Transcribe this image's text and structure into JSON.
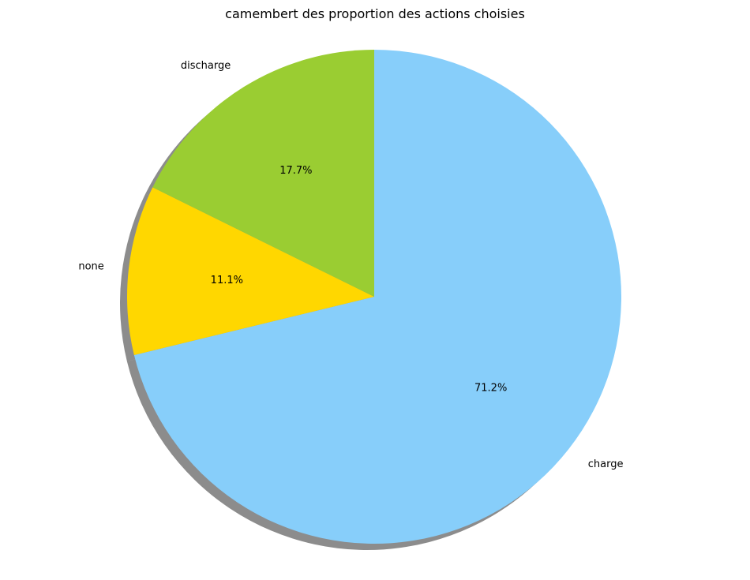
{
  "chart_data": {
    "type": "pie",
    "title": "camembert des proportion des actions choisies",
    "shadow": true,
    "start_angle_deg": 90,
    "direction": "clockwise",
    "slices": [
      {
        "label": "charge",
        "value": 71.2,
        "pct_label": "71.2%",
        "color": "#87CEFA"
      },
      {
        "label": "none",
        "value": 11.1,
        "pct_label": "11.1%",
        "color": "#FFD700"
      },
      {
        "label": "discharge",
        "value": 17.7,
        "pct_label": "17.7%",
        "color": "#9ACD32"
      }
    ]
  }
}
